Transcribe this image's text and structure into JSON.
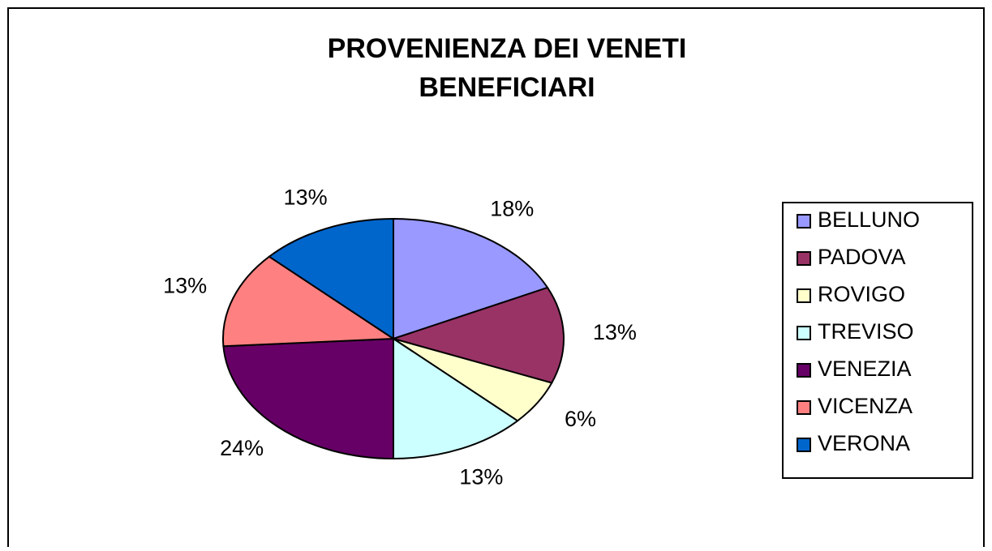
{
  "chart_data": {
    "type": "pie",
    "title": [
      "PROVENIENZA DEI VENETI",
      "BENEFICIARI"
    ],
    "categories": [
      "BELLUNO",
      "PADOVA",
      "ROVIGO",
      "TREVISO",
      "VENEZIA",
      "VICENZA",
      "VERONA"
    ],
    "values": [
      18,
      13,
      6,
      13,
      24,
      13,
      13
    ],
    "value_labels": [
      "18%",
      "13%",
      "6%",
      "13%",
      "24%",
      "13%",
      "13%"
    ],
    "colors": [
      "#9999ff",
      "#993366",
      "#ffffcc",
      "#ccffff",
      "#660066",
      "#ff8080",
      "#0066cc"
    ],
    "legend": "right"
  }
}
